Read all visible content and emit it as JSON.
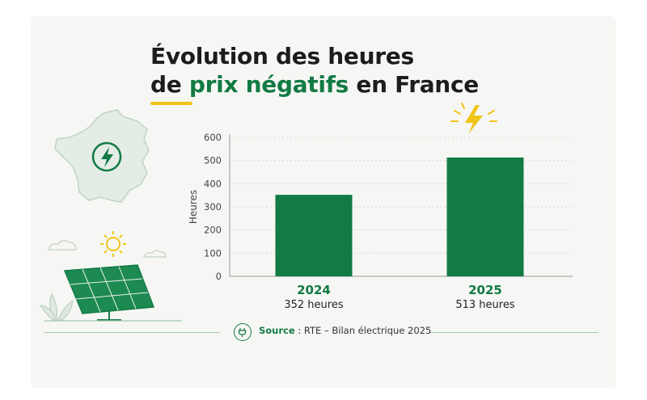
{
  "title": {
    "line1": "Évolution des heures",
    "line2_prefix": "de ",
    "line2_accent": "prix négatifs",
    "line2_suffix": " en France"
  },
  "source": {
    "label": "Source",
    "separator": " : ",
    "text": "RTE – Bilan électrique 2025"
  },
  "colors": {
    "bar": "#127a44",
    "accent": "#127a44",
    "highlight": "#f0c419"
  },
  "icons": [
    "france-map-icon",
    "lightning-icon",
    "sun-icon",
    "solar-panel-icon",
    "plant-icon",
    "cloud-icon",
    "plug-icon"
  ],
  "chart_data": {
    "type": "bar",
    "categories": [
      "2024",
      "2025"
    ],
    "category_sublabels": [
      "352 heures",
      "513 heures"
    ],
    "values": [
      352,
      513
    ],
    "ylabel": "Heures",
    "ylim": [
      0,
      600
    ],
    "yticks": [
      "0",
      "100",
      "200",
      "300",
      "400",
      "500",
      "600"
    ],
    "grid": true
  }
}
